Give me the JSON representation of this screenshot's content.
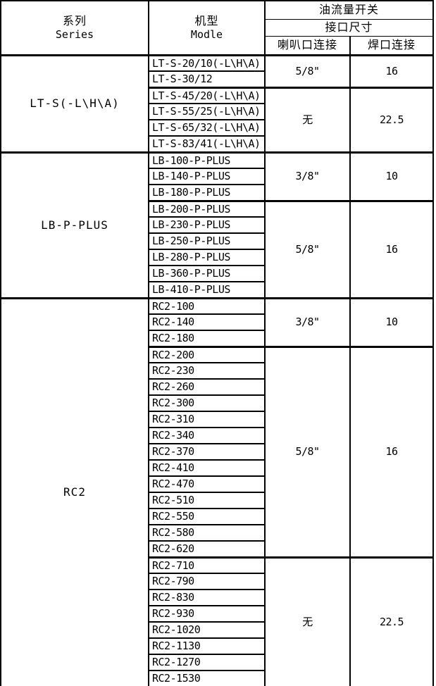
{
  "colors": {
    "background": "#ffffff",
    "grid_line": "#000000",
    "text": "#000000"
  },
  "header": {
    "series_zh": "系列",
    "series_en": "Series",
    "model_zh": "机型",
    "model_en": "Modle",
    "oil_flow_switch_title": "油流量开关",
    "port_size_title": "接口尺寸",
    "flare_connection_label": "喇叭口连接",
    "weld_connection_label": "焊口连接"
  },
  "groups": [
    {
      "series": "LT-S(-L\\H\\A)",
      "subgroups": [
        {
          "models": [
            "LT-S-20/10(-L\\H\\A)",
            "LT-S-30/12"
          ],
          "flare": "5/8\"",
          "weld": "16"
        },
        {
          "models": [
            "LT-S-45/20(-L\\H\\A)",
            "LT-S-55/25(-L\\H\\A)",
            "LT-S-65/32(-L\\H\\A)",
            "LT-S-83/41(-L\\H\\A)"
          ],
          "flare": "无",
          "weld": "22.5"
        }
      ]
    },
    {
      "series": "LB-P-PLUS",
      "subgroups": [
        {
          "models": [
            "LB-100-P-PLUS",
            "LB-140-P-PLUS",
            "LB-180-P-PLUS"
          ],
          "flare": "3/8\"",
          "weld": "10"
        },
        {
          "models": [
            "LB-200-P-PLUS",
            "LB-230-P-PLUS",
            "LB-250-P-PLUS",
            "LB-280-P-PLUS",
            "LB-360-P-PLUS",
            "LB-410-P-PLUS"
          ],
          "flare": "5/8\"",
          "weld": "16"
        }
      ]
    },
    {
      "series": "RC2",
      "subgroups": [
        {
          "models": [
            "RC2-100",
            "RC2-140",
            "RC2-180"
          ],
          "flare": "3/8\"",
          "weld": "10"
        },
        {
          "models": [
            "RC2-200",
            "RC2-230",
            "RC2-260",
            "RC2-300",
            "RC2-310",
            "RC2-340",
            "RC2-370",
            "RC2-410",
            "RC2-470",
            "RC2-510",
            "RC2-550",
            "RC2-580",
            "RC2-620"
          ],
          "flare": "5/8\"",
          "weld": "16"
        },
        {
          "models": [
            "RC2-710",
            "RC2-790",
            "RC2-830",
            "RC2-930",
            "RC2-1020",
            "RC2-1130",
            "RC2-1270",
            "RC2-1530"
          ],
          "flare": "无",
          "weld": "22.5"
        }
      ]
    }
  ]
}
